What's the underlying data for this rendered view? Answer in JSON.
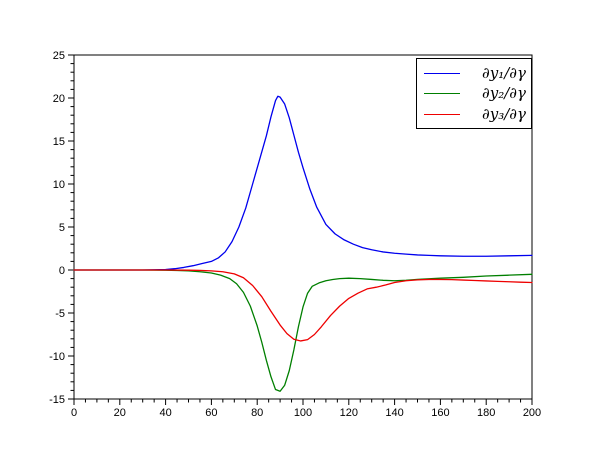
{
  "figure": {
    "background": "#ffffff",
    "border_color": "#000000",
    "tick_label_color": "#000000"
  },
  "chart_data": {
    "type": "line",
    "title": "",
    "xlabel": "",
    "ylabel": "",
    "xlim": [
      0,
      200
    ],
    "ylim": [
      -15,
      25
    ],
    "grid": false,
    "legend_position": "top-right",
    "xticks_major": [
      0,
      20,
      40,
      60,
      80,
      100,
      120,
      140,
      160,
      180,
      200
    ],
    "yticks_major": [
      -15,
      -10,
      -5,
      0,
      5,
      10,
      15,
      20,
      25
    ],
    "x_minor_step": 5,
    "y_minor_step": 1,
    "series": [
      {
        "name": "∂y₁/∂γ",
        "color": "#0000ee",
        "x": [
          0,
          10,
          20,
          30,
          35,
          40,
          44,
          48,
          52,
          56,
          60,
          63,
          66,
          69,
          72,
          75,
          78,
          81,
          84,
          86,
          88,
          89,
          90,
          92,
          94,
          96,
          98,
          100,
          103,
          106,
          110,
          114,
          118,
          122,
          126,
          130,
          135,
          140,
          145,
          150,
          155,
          160,
          170,
          180,
          190,
          200
        ],
        "y": [
          0,
          0,
          0,
          0,
          0.02,
          0.06,
          0.15,
          0.3,
          0.5,
          0.75,
          1.0,
          1.4,
          2.1,
          3.3,
          5.0,
          7.2,
          10.0,
          12.8,
          15.6,
          17.8,
          19.7,
          20.2,
          20.1,
          19.3,
          17.7,
          15.7,
          13.7,
          11.9,
          9.4,
          7.3,
          5.3,
          4.2,
          3.5,
          3.0,
          2.6,
          2.35,
          2.1,
          1.95,
          1.85,
          1.75,
          1.7,
          1.65,
          1.6,
          1.6,
          1.65,
          1.7
        ]
      },
      {
        "name": "∂y₂/∂γ",
        "color": "#007f00",
        "x": [
          0,
          10,
          20,
          30,
          40,
          45,
          50,
          55,
          60,
          64,
          68,
          71,
          74,
          77,
          80,
          82,
          84,
          86,
          88,
          90,
          92,
          94,
          96,
          98,
          100,
          102,
          104,
          107,
          110,
          113,
          116,
          120,
          125,
          130,
          135,
          140,
          145,
          150,
          160,
          170,
          180,
          190,
          200
        ],
        "y": [
          0,
          0,
          0,
          0,
          -0.02,
          -0.05,
          -0.1,
          -0.2,
          -0.35,
          -0.6,
          -1.0,
          -1.6,
          -2.6,
          -4.2,
          -6.5,
          -8.4,
          -10.5,
          -12.4,
          -13.9,
          -14.1,
          -13.4,
          -11.7,
          -9.3,
          -6.6,
          -4.3,
          -2.7,
          -1.9,
          -1.5,
          -1.25,
          -1.1,
          -1.0,
          -0.95,
          -1.0,
          -1.1,
          -1.2,
          -1.25,
          -1.2,
          -1.1,
          -0.95,
          -0.85,
          -0.7,
          -0.6,
          -0.5
        ]
      },
      {
        "name": "∂y₃/∂γ",
        "color": "#ee0000",
        "x": [
          0,
          10,
          20,
          30,
          40,
          50,
          55,
          60,
          65,
          70,
          74,
          78,
          82,
          86,
          90,
          93,
          96,
          99,
          102,
          105,
          108,
          112,
          116,
          120,
          124,
          128,
          132,
          136,
          140,
          145,
          150,
          155,
          160,
          165,
          170,
          175,
          180,
          185,
          190,
          195,
          200
        ],
        "y": [
          0,
          0,
          0,
          0,
          0,
          -0.02,
          -0.05,
          -0.1,
          -0.2,
          -0.45,
          -0.9,
          -1.8,
          -3.1,
          -4.8,
          -6.4,
          -7.4,
          -8.05,
          -8.25,
          -8.1,
          -7.5,
          -6.6,
          -5.3,
          -4.2,
          -3.3,
          -2.7,
          -2.2,
          -2.0,
          -1.75,
          -1.45,
          -1.25,
          -1.15,
          -1.1,
          -1.1,
          -1.12,
          -1.17,
          -1.22,
          -1.27,
          -1.32,
          -1.37,
          -1.42,
          -1.45
        ]
      }
    ]
  }
}
